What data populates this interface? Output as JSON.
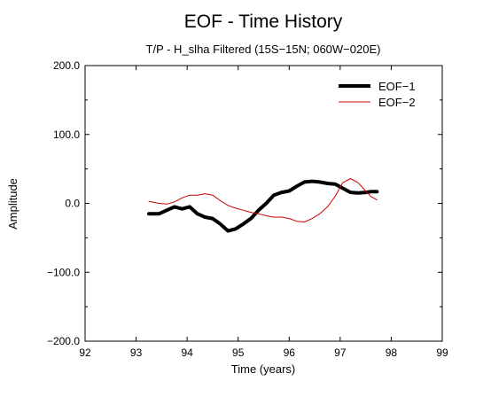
{
  "chart_data": {
    "type": "line",
    "title": "EOF - Time History",
    "subtitle": "T/P - H_slha  Filtered (15S−15N; 060W−020E)",
    "xlabel": "Time (years)",
    "ylabel": "Amplitude",
    "xlim": [
      92,
      99
    ],
    "ylim": [
      -200,
      200
    ],
    "x_ticks": [
      "92",
      "93",
      "94",
      "95",
      "96",
      "97",
      "98",
      "99"
    ],
    "y_ticks": [
      "200.0",
      "100.0",
      "0.0",
      "−100.0",
      "−200.0"
    ],
    "grid": false,
    "legend_position": "top-right",
    "series": [
      {
        "name": "EOF−1",
        "color": "#000000",
        "x": [
          93.25,
          93.45,
          93.6,
          93.75,
          93.9,
          94.05,
          94.2,
          94.35,
          94.5,
          94.65,
          94.8,
          94.95,
          95.1,
          95.25,
          95.4,
          95.55,
          95.7,
          95.85,
          96.0,
          96.15,
          96.3,
          96.45,
          96.6,
          96.75,
          96.9,
          97.05,
          97.2,
          97.35,
          97.5,
          97.6,
          97.72
        ],
        "y": [
          -15,
          -15,
          -10,
          -5,
          -8,
          -5,
          -15,
          -20,
          -22,
          -30,
          -40,
          -37,
          -30,
          -22,
          -10,
          0,
          12,
          16,
          18,
          25,
          31,
          32,
          31,
          29,
          28,
          22,
          16,
          15,
          16,
          17,
          17
        ]
      },
      {
        "name": "EOF−2",
        "color": "#cc0000",
        "x": [
          93.25,
          93.45,
          93.6,
          93.75,
          93.9,
          94.05,
          94.2,
          94.35,
          94.5,
          94.65,
          94.8,
          94.95,
          95.1,
          95.25,
          95.4,
          95.55,
          95.7,
          95.85,
          96.0,
          96.15,
          96.3,
          96.45,
          96.6,
          96.75,
          96.9,
          97.05,
          97.2,
          97.35,
          97.5,
          97.6,
          97.72
        ],
        "y": [
          3,
          0,
          -1,
          2,
          8,
          12,
          12,
          14,
          12,
          4,
          -3,
          -7,
          -10,
          -13,
          -15,
          -18,
          -20,
          -20,
          -22,
          -26,
          -27,
          -22,
          -15,
          -5,
          10,
          30,
          36,
          30,
          18,
          10,
          5
        ]
      }
    ]
  }
}
